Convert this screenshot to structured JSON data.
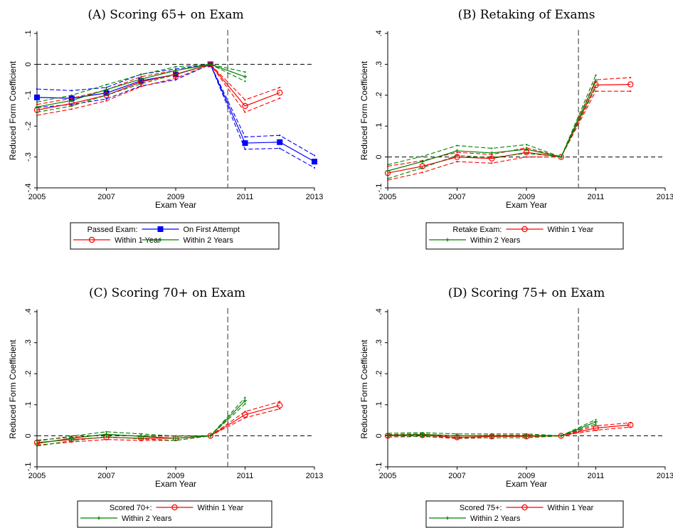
{
  "chart_data": [
    {
      "type": "line",
      "title": "(A) Scoring 65+ on Exam",
      "xlabel": "Exam Year",
      "ylabel": "Reduced Form Coefficient",
      "xlim": [
        2005,
        2013
      ],
      "ylim": [
        -0.4,
        0.1
      ],
      "x_ticks": [
        "2005",
        "2007",
        "2009",
        "2011",
        "2013"
      ],
      "y_ticks": [
        {
          "value": 0.1,
          "label": ".1"
        },
        {
          "value": 0,
          "label": "0"
        },
        {
          "value": -0.1,
          "label": "-.1"
        },
        {
          "value": -0.2,
          "label": "-.2"
        },
        {
          "value": -0.3,
          "label": "-.3"
        },
        {
          "value": -0.4,
          "label": "-.4"
        }
      ],
      "reference_x": 2010.5,
      "reference_y": 0,
      "legend": {
        "title": "Passed Exam:",
        "layout": "header-then-grid"
      },
      "series": [
        {
          "name": "On First Attempt",
          "color": "#0000ff",
          "marker": "square",
          "x": [
            2005,
            2006,
            2007,
            2008,
            2009,
            2010,
            2011,
            2012,
            2013
          ],
          "values": [
            -0.107,
            -0.11,
            -0.093,
            -0.053,
            -0.033,
            0,
            -0.255,
            -0.252,
            -0.315
          ],
          "lower": [
            -0.14,
            -0.13,
            -0.112,
            -0.07,
            -0.05,
            0,
            -0.275,
            -0.272,
            -0.335
          ],
          "upper": [
            -0.08,
            -0.085,
            -0.075,
            -0.032,
            -0.015,
            0,
            -0.235,
            -0.23,
            -0.295
          ]
        },
        {
          "name": "Within 1 Year",
          "color": "#ff0000",
          "marker": "circle",
          "x": [
            2005,
            2006,
            2007,
            2008,
            2009,
            2010,
            2011,
            2012
          ],
          "values": [
            -0.148,
            -0.127,
            -0.1,
            -0.057,
            -0.032,
            0,
            -0.135,
            -0.092
          ],
          "lower": [
            -0.165,
            -0.145,
            -0.118,
            -0.072,
            -0.045,
            0,
            -0.155,
            -0.11
          ],
          "upper": [
            -0.13,
            -0.11,
            -0.083,
            -0.04,
            -0.02,
            0,
            -0.115,
            -0.075
          ]
        },
        {
          "name": "Within 2 Years",
          "color": "#008000",
          "marker": "plus",
          "x": [
            2005,
            2006,
            2007,
            2008,
            2009,
            2010,
            2011
          ],
          "values": [
            -0.138,
            -0.117,
            -0.082,
            -0.048,
            -0.02,
            0,
            -0.04
          ],
          "lower": [
            -0.155,
            -0.135,
            -0.1,
            -0.063,
            -0.033,
            0,
            -0.055
          ],
          "upper": [
            -0.122,
            -0.1,
            -0.066,
            -0.033,
            -0.008,
            0,
            -0.025
          ]
        }
      ]
    },
    {
      "type": "line",
      "title": "(B) Retaking of Exams",
      "xlabel": "Exam Year",
      "ylabel": "Reduced Form Coefficient",
      "xlim": [
        2005,
        2013
      ],
      "ylim": [
        -0.1,
        0.4
      ],
      "x_ticks": [
        "2005",
        "2007",
        "2009",
        "2011",
        "2013"
      ],
      "y_ticks": [
        {
          "value": 0.4,
          "label": ".4"
        },
        {
          "value": 0.3,
          "label": ".3"
        },
        {
          "value": 0.2,
          "label": ".2"
        },
        {
          "value": 0.1,
          "label": ".1"
        },
        {
          "value": 0,
          "label": "0"
        },
        {
          "value": -0.1,
          "label": "-.1"
        }
      ],
      "reference_x": 2010.5,
      "reference_y": 0,
      "legend": {
        "title": "Retake Exam:",
        "layout": "inline-then-wrap"
      },
      "series": [
        {
          "name": "Within 1 Year",
          "color": "#ff0000",
          "marker": "circle",
          "x": [
            2005,
            2006,
            2007,
            2008,
            2009,
            2010,
            2011,
            2012
          ],
          "values": [
            -0.052,
            -0.03,
            0,
            -0.005,
            0.015,
            0,
            0.233,
            0.235
          ],
          "lower": [
            -0.075,
            -0.05,
            -0.015,
            -0.02,
            0,
            0,
            0.213,
            0.213
          ],
          "upper": [
            -0.03,
            -0.012,
            0.015,
            0.008,
            0.03,
            0,
            0.25,
            0.257
          ]
        },
        {
          "name": "Within 2 Years",
          "color": "#008000",
          "marker": "plus",
          "x": [
            2005,
            2006,
            2007,
            2008,
            2009,
            2010,
            2011
          ],
          "values": [
            -0.045,
            -0.015,
            0.02,
            0.013,
            0.025,
            0,
            0.245
          ],
          "lower": [
            -0.07,
            -0.035,
            0.005,
            -0.002,
            0.012,
            0,
            0.225
          ],
          "upper": [
            -0.025,
            0.002,
            0.037,
            0.028,
            0.04,
            0,
            0.265
          ]
        }
      ]
    },
    {
      "type": "line",
      "title": "(C) Scoring 70+ on Exam",
      "xlabel": "Exam Year",
      "ylabel": "Reduced Form Coefficient",
      "xlim": [
        2005,
        2013
      ],
      "ylim": [
        -0.1,
        0.4
      ],
      "x_ticks": [
        "2005",
        "2007",
        "2009",
        "2011",
        "2013"
      ],
      "y_ticks": [
        {
          "value": 0.4,
          "label": ".4"
        },
        {
          "value": 0.3,
          "label": ".3"
        },
        {
          "value": 0.2,
          "label": ".2"
        },
        {
          "value": 0.1,
          "label": ".1"
        },
        {
          "value": 0,
          "label": "0"
        },
        {
          "value": -0.1,
          "label": "-.1"
        }
      ],
      "reference_x": 2010.5,
      "reference_y": 0,
      "legend": {
        "title": "Scored 70+:",
        "layout": "inline-then-wrap"
      },
      "series": [
        {
          "name": "Within 1 Year",
          "color": "#ff0000",
          "marker": "circle",
          "x": [
            2005,
            2006,
            2007,
            2008,
            2009,
            2010,
            2011,
            2012
          ],
          "values": [
            -0.022,
            -0.012,
            -0.005,
            -0.008,
            -0.008,
            0,
            0.068,
            0.098
          ],
          "lower": [
            -0.03,
            -0.02,
            -0.012,
            -0.015,
            -0.015,
            0,
            0.058,
            0.087
          ],
          "upper": [
            -0.014,
            -0.005,
            0.003,
            -0.001,
            -0.001,
            0,
            0.078,
            0.11
          ]
        },
        {
          "name": "Within 2 Years",
          "color": "#008000",
          "marker": "plus",
          "x": [
            2005,
            2006,
            2007,
            2008,
            2009,
            2010,
            2011
          ],
          "values": [
            -0.025,
            -0.008,
            0.005,
            -0.002,
            -0.008,
            0,
            0.113
          ],
          "lower": [
            -0.033,
            -0.016,
            -0.003,
            -0.01,
            -0.015,
            0,
            0.103
          ],
          "upper": [
            -0.017,
            -0.001,
            0.013,
            0.006,
            -0.001,
            0,
            0.123
          ]
        }
      ]
    },
    {
      "type": "line",
      "title": "(D) Scoring 75+ on Exam",
      "xlabel": "Exam Year",
      "ylabel": "Reduced Form Coefficient",
      "xlim": [
        2005,
        2013
      ],
      "ylim": [
        -0.1,
        0.4
      ],
      "x_ticks": [
        "2005",
        "2007",
        "2009",
        "2011",
        "2013"
      ],
      "y_ticks": [
        {
          "value": 0.4,
          "label": ".4"
        },
        {
          "value": 0.3,
          "label": ".3"
        },
        {
          "value": 0.2,
          "label": ".2"
        },
        {
          "value": 0.1,
          "label": ".1"
        },
        {
          "value": 0,
          "label": "0"
        },
        {
          "value": -0.1,
          "label": "-.1"
        }
      ],
      "reference_x": 2010.5,
      "reference_y": 0,
      "legend": {
        "title": "Scored 75+:",
        "layout": "inline-then-wrap"
      },
      "series": [
        {
          "name": "Within 1 Year",
          "color": "#ff0000",
          "marker": "circle",
          "x": [
            2005,
            2006,
            2007,
            2008,
            2009,
            2010,
            2011,
            2012
          ],
          "values": [
            0,
            0.002,
            -0.005,
            -0.002,
            -0.002,
            0,
            0.025,
            0.035
          ],
          "lower": [
            -0.004,
            -0.002,
            -0.009,
            -0.006,
            -0.006,
            0,
            0.018,
            0.028
          ],
          "upper": [
            0.004,
            0.006,
            -0.001,
            0.002,
            0.002,
            0,
            0.032,
            0.042
          ]
        },
        {
          "name": "Within 2 Years",
          "color": "#008000",
          "marker": "plus",
          "x": [
            2005,
            2006,
            2007,
            2008,
            2009,
            2010,
            2011
          ],
          "values": [
            0.002,
            0.004,
            0,
            0,
            0,
            0,
            0.045
          ],
          "lower": [
            -0.004,
            -0.002,
            -0.006,
            -0.006,
            -0.006,
            0,
            0.038
          ],
          "upper": [
            0.008,
            0.01,
            0.006,
            0.006,
            0.006,
            0,
            0.052
          ]
        }
      ]
    }
  ]
}
